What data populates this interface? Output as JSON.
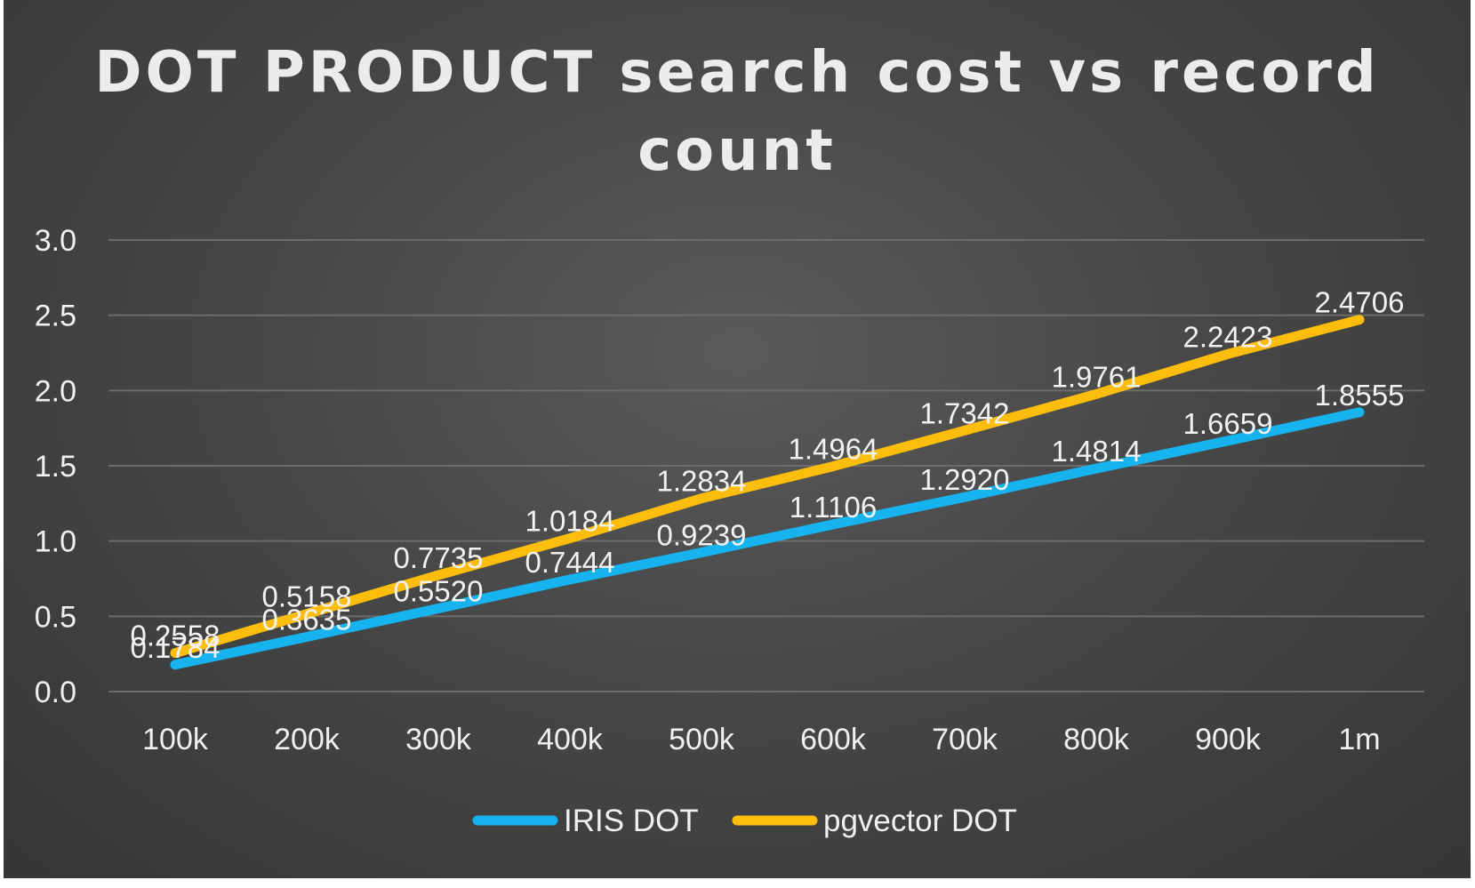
{
  "chart_data": {
    "type": "line",
    "title": "DOT PRODUCT search cost vs record count",
    "title_lines": [
      "DOT PRODUCT search cost vs record",
      "count"
    ],
    "categories": [
      "100k",
      "200k",
      "300k",
      "400k",
      "500k",
      "600k",
      "700k",
      "800k",
      "900k",
      "1m"
    ],
    "yticks": [
      "0.0",
      "0.5",
      "1.0",
      "1.5",
      "2.0",
      "2.5",
      "3.0"
    ],
    "ylim": [
      0,
      3
    ],
    "grid": true,
    "legend_position": "bottom",
    "series": [
      {
        "name": "IRIS DOT",
        "color": "#16b3ee",
        "values": [
          0.1784,
          0.3635,
          0.552,
          0.7444,
          0.9239,
          1.1106,
          1.292,
          1.4814,
          1.6659,
          1.8555
        ],
        "labels": [
          "0.1784",
          "0.3635",
          "0.5520",
          "0.7444",
          "0.9239",
          "1.1106",
          "1.2920",
          "1.4814",
          "1.6659",
          "1.8555"
        ]
      },
      {
        "name": "pgvector DOT",
        "color": "#fdbd0d",
        "values": [
          0.2558,
          0.5158,
          0.7735,
          1.0184,
          1.2834,
          1.4964,
          1.7342,
          1.9761,
          2.2423,
          2.4706
        ],
        "labels": [
          "0.2558",
          "0.5158",
          "0.7735",
          "1.0184",
          "1.2834",
          "1.4964",
          "1.7342",
          "1.9761",
          "2.2423",
          "2.4706"
        ]
      }
    ]
  }
}
